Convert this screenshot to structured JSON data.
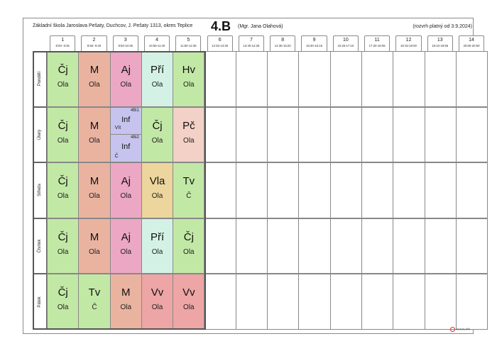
{
  "header": {
    "school": "Základní škola Jaroslava Pešaty, Duchcov, J. Pešaty 1313, okres Teplice",
    "class_name": "4.B",
    "teacher": "(Mgr. Jana Olahová)",
    "valid": "(rozvrh platný od 3.9.2024)"
  },
  "periods": [
    {
      "num": "1",
      "time": "8:00- 8:45"
    },
    {
      "num": "2",
      "time": "8:55- 9:40"
    },
    {
      "num": "3",
      "time": "9:50-10:35"
    },
    {
      "num": "4",
      "time": "10:55-11:40"
    },
    {
      "num": "5",
      "time": "11:50-12:35"
    },
    {
      "num": "6",
      "time": "12:45-13:30"
    },
    {
      "num": "7",
      "time": "13:40-14:25"
    },
    {
      "num": "8",
      "time": "14:35-15:20"
    },
    {
      "num": "9",
      "time": "15:30-16:15"
    },
    {
      "num": "10",
      "time": "16:25-17:10"
    },
    {
      "num": "11",
      "time": "17:20-18:05"
    },
    {
      "num": "12",
      "time": "18:15-19:00"
    },
    {
      "num": "13",
      "time": "19:10-19:55"
    },
    {
      "num": "14",
      "time": "20:05-20:50"
    }
  ],
  "days": [
    {
      "name": "Pondělí",
      "lessons": [
        {
          "subject": "Čj",
          "teacher": "Ola",
          "color": "#c2e8a6"
        },
        {
          "subject": "M",
          "teacher": "Ola",
          "color": "#eab3a0"
        },
        {
          "subject": "Aj",
          "teacher": "Ola",
          "color": "#eca7c4"
        },
        {
          "subject": "Pří",
          "teacher": "Ola",
          "color": "#d3f2e5"
        },
        {
          "subject": "Hv",
          "teacher": "Ola",
          "color": "#c2e8a6"
        }
      ]
    },
    {
      "name": "Úterý",
      "lessons": [
        {
          "subject": "Čj",
          "teacher": "Ola",
          "color": "#c2e8a6"
        },
        {
          "subject": "M",
          "teacher": "Ola",
          "color": "#eab3a0"
        },
        {
          "split": true,
          "top": {
            "group": "4Bi1",
            "subject": "Inf",
            "teacher": "Vít",
            "color": "#c6c4ee"
          },
          "bottom": {
            "group": "4Bi2",
            "subject": "Inf",
            "teacher": "Č",
            "color": "#c6c4ee"
          }
        },
        {
          "subject": "Čj",
          "teacher": "Ola",
          "color": "#c2e8a6"
        },
        {
          "subject": "Pč",
          "teacher": "Ola",
          "color": "#f3d1c6"
        }
      ]
    },
    {
      "name": "Středa",
      "lessons": [
        {
          "subject": "Čj",
          "teacher": "Ola",
          "color": "#c2e8a6"
        },
        {
          "subject": "M",
          "teacher": "Ola",
          "color": "#eab3a0"
        },
        {
          "subject": "Aj",
          "teacher": "Ola",
          "color": "#eca7c4"
        },
        {
          "subject": "Vla",
          "teacher": "Ola",
          "color": "#ecd69d"
        },
        {
          "subject": "Tv",
          "teacher": "Č",
          "color": "#c2e8a6"
        }
      ]
    },
    {
      "name": "Čtvrtek",
      "lessons": [
        {
          "subject": "Čj",
          "teacher": "Ola",
          "color": "#c2e8a6"
        },
        {
          "subject": "M",
          "teacher": "Ola",
          "color": "#eab3a0"
        },
        {
          "subject": "Aj",
          "teacher": "Ola",
          "color": "#eca7c4"
        },
        {
          "subject": "Pří",
          "teacher": "Ola",
          "color": "#d3f2e5"
        },
        {
          "subject": "Čj",
          "teacher": "Ola",
          "color": "#c2e8a6"
        }
      ]
    },
    {
      "name": "Pátek",
      "lessons": [
        {
          "subject": "Čj",
          "teacher": "Ola",
          "color": "#c2e8a6"
        },
        {
          "subject": "Tv",
          "teacher": "Č",
          "color": "#c2e8a6"
        },
        {
          "subject": "M",
          "teacher": "Ola",
          "color": "#eab3a0"
        },
        {
          "subject": "Vv",
          "teacher": "Ola",
          "color": "#eea5a5"
        },
        {
          "subject": "Vv",
          "teacher": "Ola",
          "color": "#eea5a5"
        }
      ]
    }
  ],
  "footer": {
    "logo": "BAKALÁŘI"
  }
}
